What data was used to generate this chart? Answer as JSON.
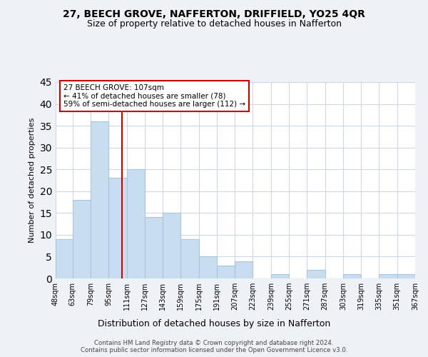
{
  "title": "27, BEECH GROVE, NAFFERTON, DRIFFIELD, YO25 4QR",
  "subtitle": "Size of property relative to detached houses in Nafferton",
  "xlabel": "Distribution of detached houses by size in Nafferton",
  "ylabel": "Number of detached properties",
  "bin_edges": [
    48,
    63,
    79,
    95,
    111,
    127,
    143,
    159,
    175,
    191,
    207,
    223,
    239,
    255,
    271,
    287,
    303,
    319,
    335,
    351,
    367
  ],
  "bin_labels": [
    "48sqm",
    "63sqm",
    "79sqm",
    "95sqm",
    "111sqm",
    "127sqm",
    "143sqm",
    "159sqm",
    "175sqm",
    "191sqm",
    "207sqm",
    "223sqm",
    "239sqm",
    "255sqm",
    "271sqm",
    "287sqm",
    "303sqm",
    "319sqm",
    "335sqm",
    "351sqm",
    "367sqm"
  ],
  "counts": [
    9,
    18,
    36,
    23,
    25,
    14,
    15,
    9,
    5,
    3,
    4,
    0,
    1,
    0,
    2,
    0,
    1,
    0,
    1,
    1
  ],
  "bar_color": "#c9ddf0",
  "bar_edgecolor": "#a8c4de",
  "ylim": [
    0,
    45
  ],
  "yticks": [
    0,
    5,
    10,
    15,
    20,
    25,
    30,
    35,
    40,
    45
  ],
  "property_line_x": 107,
  "property_line_color": "#cc0000",
  "annotation_text": "27 BEECH GROVE: 107sqm\n← 41% of detached houses are smaller (78)\n59% of semi-detached houses are larger (112) →",
  "annotation_box_color": "#ffffff",
  "annotation_box_edgecolor": "#cc0000",
  "footer_line1": "Contains HM Land Registry data © Crown copyright and database right 2024.",
  "footer_line2": "Contains public sector information licensed under the Open Government Licence v3.0.",
  "background_color": "#eef2f7",
  "plot_background_color": "#ffffff",
  "grid_color": "#ccd8e8"
}
